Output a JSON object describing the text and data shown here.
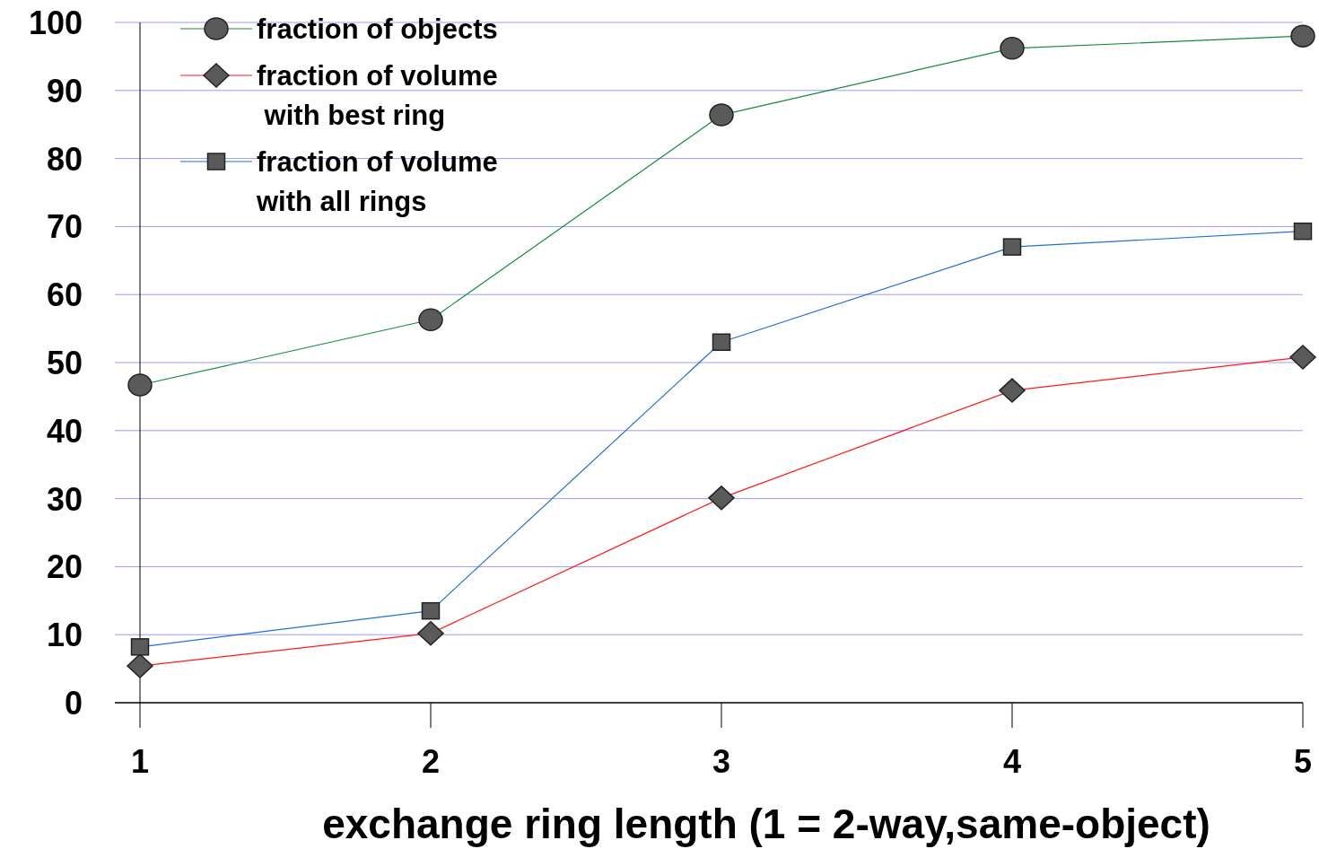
{
  "chart_data": {
    "type": "line",
    "xlabel": "exchange ring length (1 = 2-way,same-object)",
    "x": [
      1,
      2,
      3,
      4,
      5
    ],
    "xlim": [
      1,
      5
    ],
    "xticks": [
      1,
      2,
      3,
      4,
      5
    ],
    "ylim": [
      0,
      100
    ],
    "yticks": [
      0,
      10,
      20,
      30,
      40,
      50,
      60,
      70,
      80,
      90,
      100
    ],
    "grid": "y",
    "legend": "top left",
    "series": [
      {
        "name": "fraction of objects",
        "color": "#138a3c",
        "marker": "circle",
        "values": [
          46.7,
          56.3,
          86.4,
          96.2,
          98
        ]
      },
      {
        "name": "fraction of volume\n with best ring",
        "color": "#ff1a1a",
        "marker": "diamond",
        "values": [
          5.4,
          10.2,
          30.1,
          45.9,
          50.8
        ]
      },
      {
        "name": "fraction of volume\nwith all rings",
        "color": "#1f6fd6",
        "marker": "square",
        "values": [
          8.2,
          13.5,
          53,
          67,
          69.3
        ]
      }
    ]
  }
}
